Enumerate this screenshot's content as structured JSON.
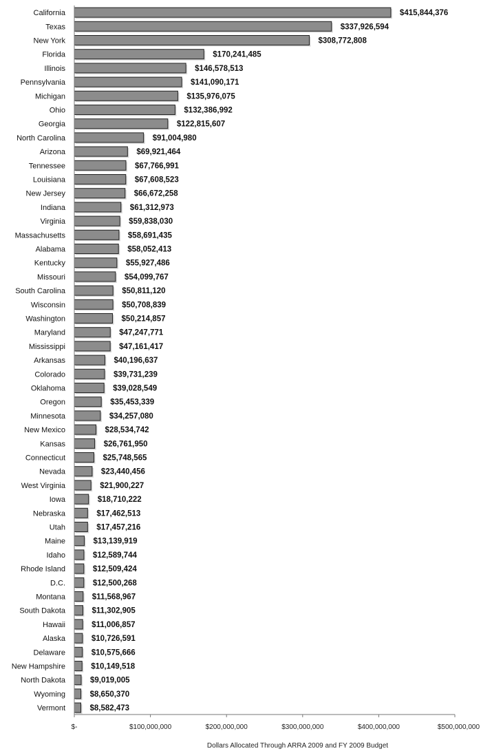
{
  "chart_data": {
    "type": "bar",
    "orientation": "horizontal",
    "xlabel": "Dollars Allocated Through ARRA 2009 and FY 2009 Budget",
    "ylabel": "",
    "xlim": [
      0,
      500000000
    ],
    "grid": false,
    "legend": "none",
    "bar_color": "#8c8c8c",
    "bar_edge_color": "#222222",
    "ticks": [
      {
        "value": 0,
        "label": "$-"
      },
      {
        "value": 100000000,
        "label": "$100,000,000"
      },
      {
        "value": 200000000,
        "label": "$200,000,000"
      },
      {
        "value": 300000000,
        "label": "$300,000,000"
      },
      {
        "value": 400000000,
        "label": "$400,000,000"
      },
      {
        "value": 500000000,
        "label": "$500,000,000"
      }
    ],
    "categories": [
      "California",
      "Texas",
      "New York",
      "Florida",
      "Illinois",
      "Pennsylvania",
      "Michigan",
      "Ohio",
      "Georgia",
      "North Carolina",
      "Arizona",
      "Tennessee",
      "Louisiana",
      "New Jersey",
      "Indiana",
      "Virginia",
      "Massachusetts",
      "Alabama",
      "Kentucky",
      "Missouri",
      "South Carolina",
      "Wisconsin",
      "Washington",
      "Maryland",
      "Mississippi",
      "Arkansas",
      "Colorado",
      "Oklahoma",
      "Oregon",
      "Minnesota",
      "New Mexico",
      "Kansas",
      "Connecticut",
      "Nevada",
      "West Virginia",
      "Iowa",
      "Nebraska",
      "Utah",
      "Maine",
      "Idaho",
      "Rhode Island",
      "D.C.",
      "Montana",
      "South Dakota",
      "Hawaii",
      "Alaska",
      "Delaware",
      "New Hampshire",
      "North Dakota",
      "Wyoming",
      "Vermont"
    ],
    "values": [
      415844376,
      337926594,
      308772808,
      170241485,
      146578513,
      141090171,
      135976075,
      132386992,
      122815607,
      91004980,
      69921464,
      67766991,
      67608523,
      66672258,
      61312973,
      59838030,
      58691435,
      58052413,
      55927486,
      54099767,
      50811120,
      50708839,
      50214857,
      47247771,
      47161417,
      40196637,
      39731239,
      39028549,
      35453339,
      34257080,
      28534742,
      26761950,
      25748565,
      23440456,
      21900227,
      18710222,
      17462513,
      17457216,
      13139919,
      12589744,
      12509424,
      12500268,
      11568967,
      11302905,
      11006857,
      10726591,
      10575666,
      10149518,
      9019005,
      8650370,
      8582473
    ],
    "value_labels": [
      "$415,844,376",
      "$337,926,594",
      "$308,772,808",
      "$170,241,485",
      "$146,578,513",
      "$141,090,171",
      "$135,976,075",
      "$132,386,992",
      "$122,815,607",
      "$91,004,980",
      "$69,921,464",
      "$67,766,991",
      "$67,608,523",
      "$66,672,258",
      "$61,312,973",
      "$59,838,030",
      "$58,691,435",
      "$58,052,413",
      "$55,927,486",
      "$54,099,767",
      "$50,811,120",
      "$50,708,839",
      "$50,214,857",
      "$47,247,771",
      "$47,161,417",
      "$40,196,637",
      "$39,731,239",
      "$39,028,549",
      "$35,453,339",
      "$34,257,080",
      "$28,534,742",
      "$26,761,950",
      "$25,748,565",
      "$23,440,456",
      "$21,900,227",
      "$18,710,222",
      "$17,462,513",
      "$17,457,216",
      "$13,139,919",
      "$12,589,744",
      "$12,509,424",
      "$12,500,268",
      "$11,568,967",
      "$11,302,905",
      "$11,006,857",
      "$10,726,591",
      "$10,575,666",
      "$10,149,518",
      "$9,019,005",
      "$8,650,370",
      "$8,582,473"
    ]
  }
}
